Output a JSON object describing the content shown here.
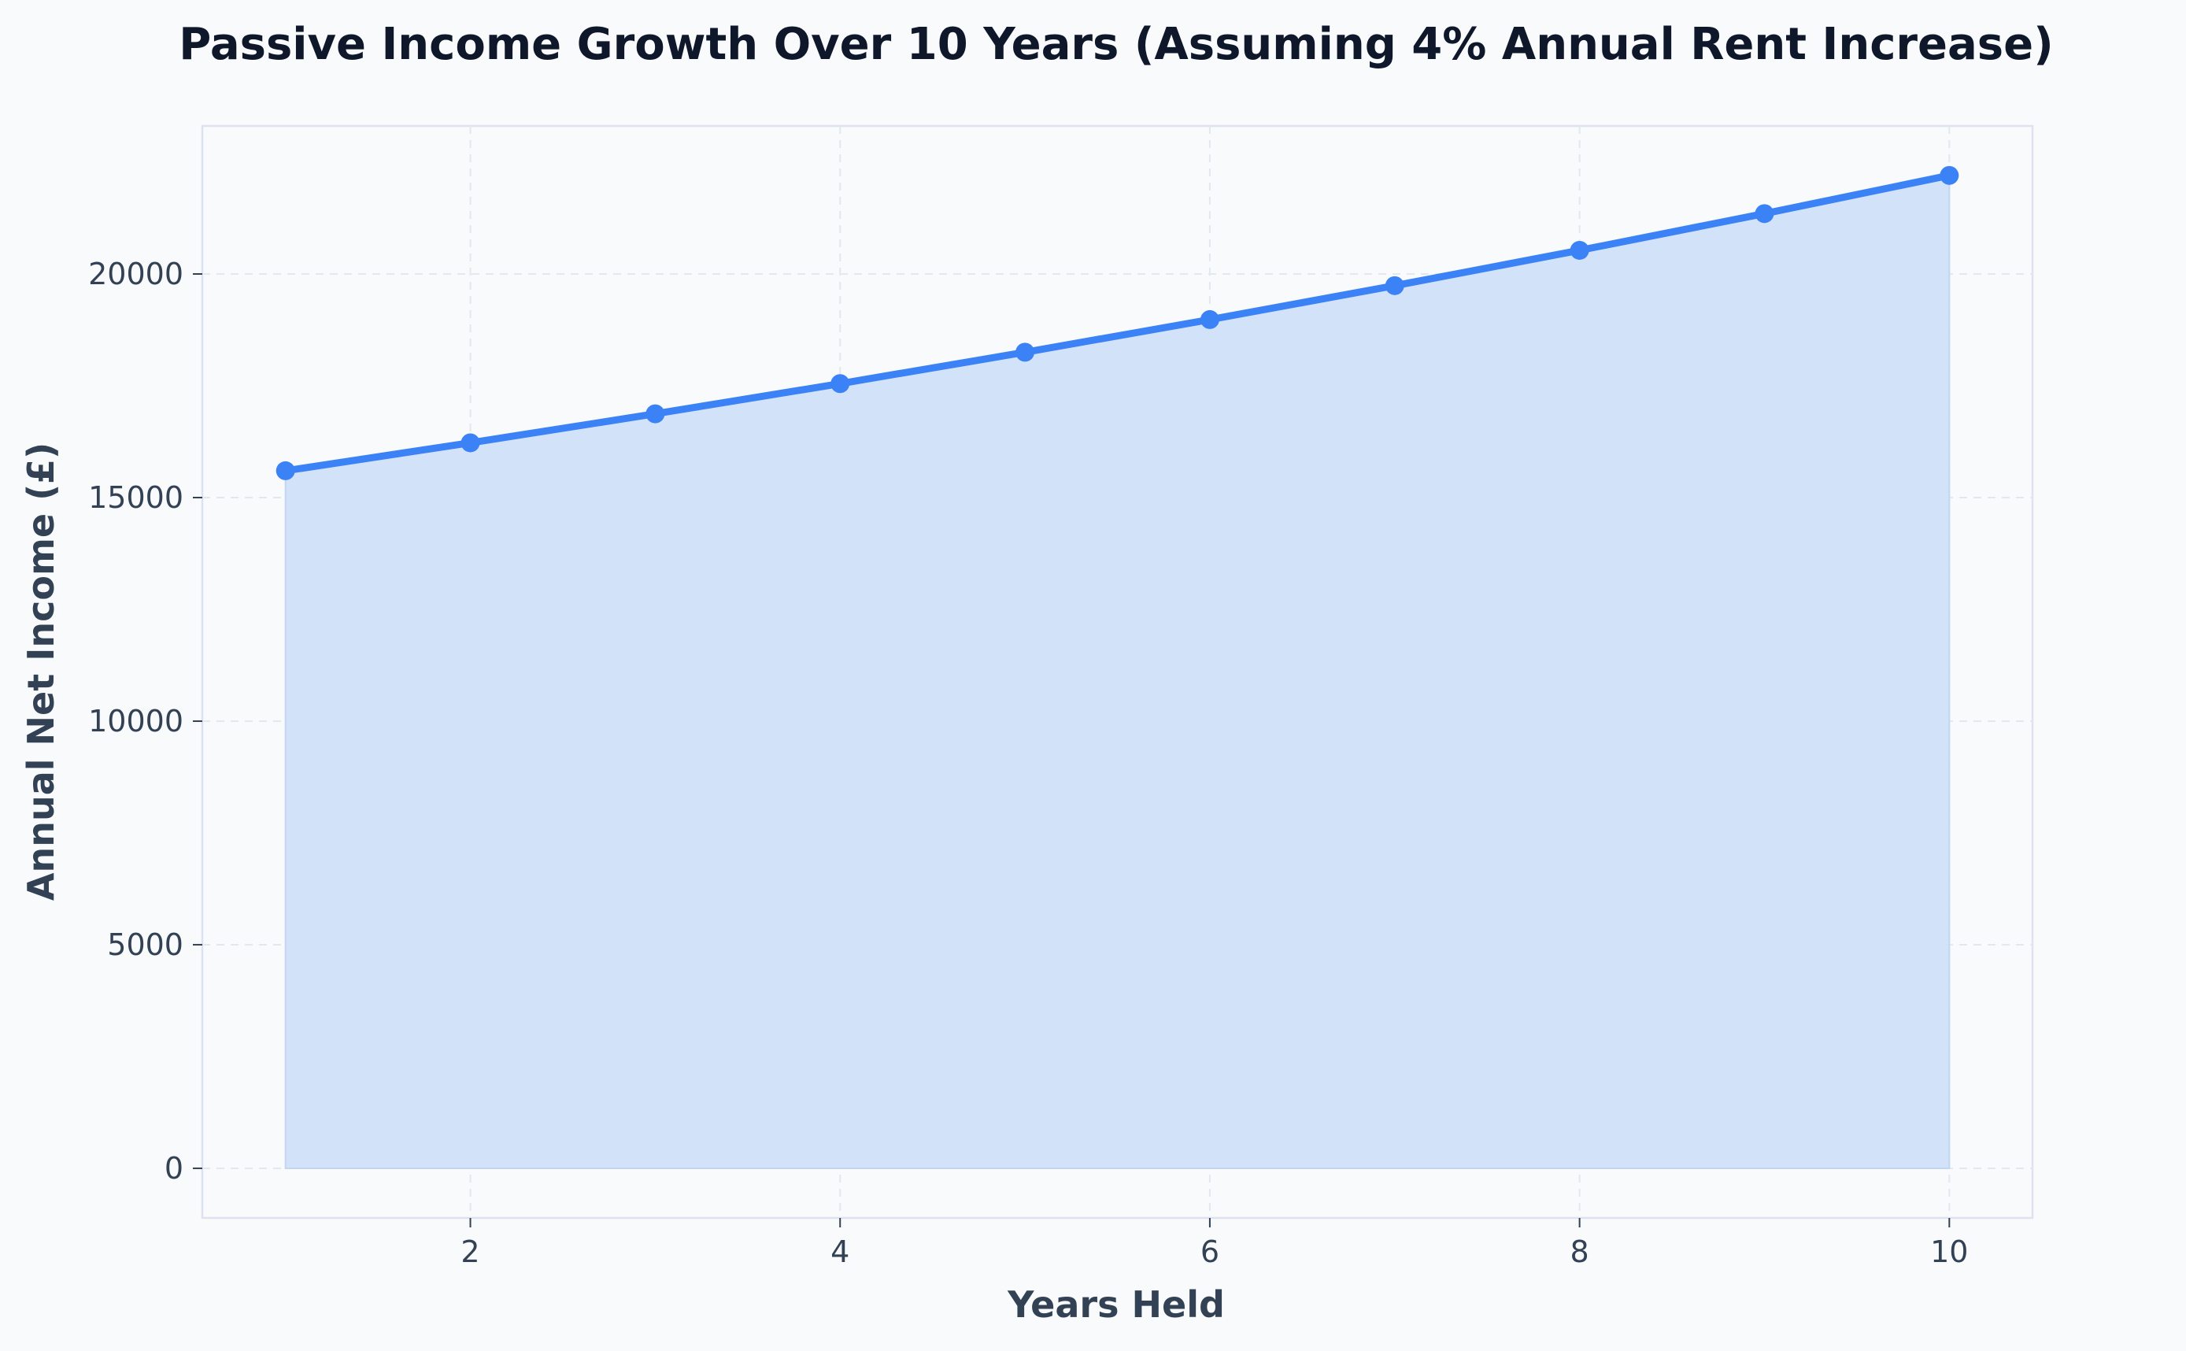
{
  "chart_data": {
    "type": "area",
    "title": "Passive Income Growth Over 10 Years (Assuming 4% Annual Rent Increase)",
    "xlabel": "Years Held",
    "ylabel": "Annual Net Income (£)",
    "x": [
      1,
      2,
      3,
      4,
      5,
      6,
      7,
      8,
      9,
      10
    ],
    "series": [
      {
        "values": [
          15600,
          16224,
          16873,
          17548,
          18250,
          18980,
          19739,
          20529,
          21350,
          22204
        ],
        "line_color": "#3b82f6",
        "fill_color": "#d2e2f9"
      }
    ],
    "xlim": [
      0.55,
      10.45
    ],
    "ylim": [
      -1110,
      23310
    ],
    "xticks": [
      2,
      4,
      6,
      8,
      10
    ],
    "yticks": [
      0,
      5000,
      10000,
      15000,
      20000
    ],
    "xtick_labels": [
      "2",
      "4",
      "6",
      "8",
      "10"
    ],
    "ytick_labels": [
      "0",
      "5000",
      "10000",
      "15000",
      "20000"
    ],
    "grid": true,
    "marker": "circle"
  }
}
